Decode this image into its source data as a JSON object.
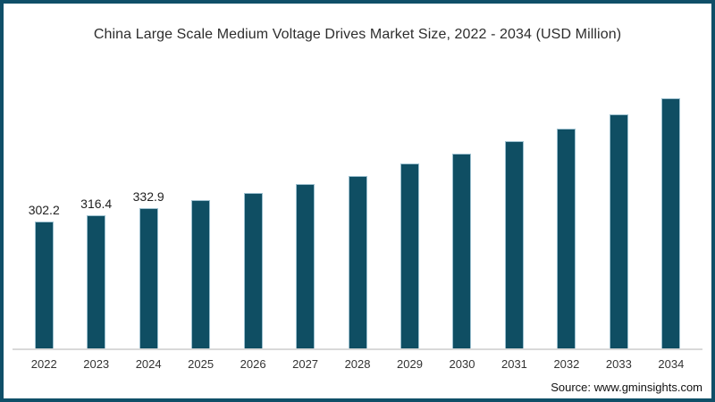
{
  "chart_data": {
    "type": "bar",
    "title": "China Large Scale Medium Voltage Drives Market Size, 2022 - 2034 (USD Million)",
    "unit": "USD Million",
    "categories": [
      "2022",
      "2023",
      "2024",
      "2025",
      "2026",
      "2027",
      "2028",
      "2029",
      "2030",
      "2031",
      "2032",
      "2033",
      "2034"
    ],
    "values": [
      302.2,
      316.4,
      332.9,
      353,
      370,
      391,
      410,
      440,
      463,
      493,
      524,
      557,
      595
    ],
    "value_labels_shown": [
      "302.2",
      "316.4",
      "332.9",
      "",
      "",
      "",
      "",
      "",
      "",
      "",
      "",
      "",
      ""
    ],
    "xlabel": "",
    "ylabel": "",
    "ylim": [
      0,
      723
    ],
    "grid": false,
    "legend": false,
    "bar_color": "#0f4e63",
    "bar_edge_color": "#9cc0cf",
    "axis_line_color": "#d9d9d9",
    "frame_border_color": "#0f4f68"
  },
  "footer": {
    "source": "Source: www.gminsights.com"
  }
}
